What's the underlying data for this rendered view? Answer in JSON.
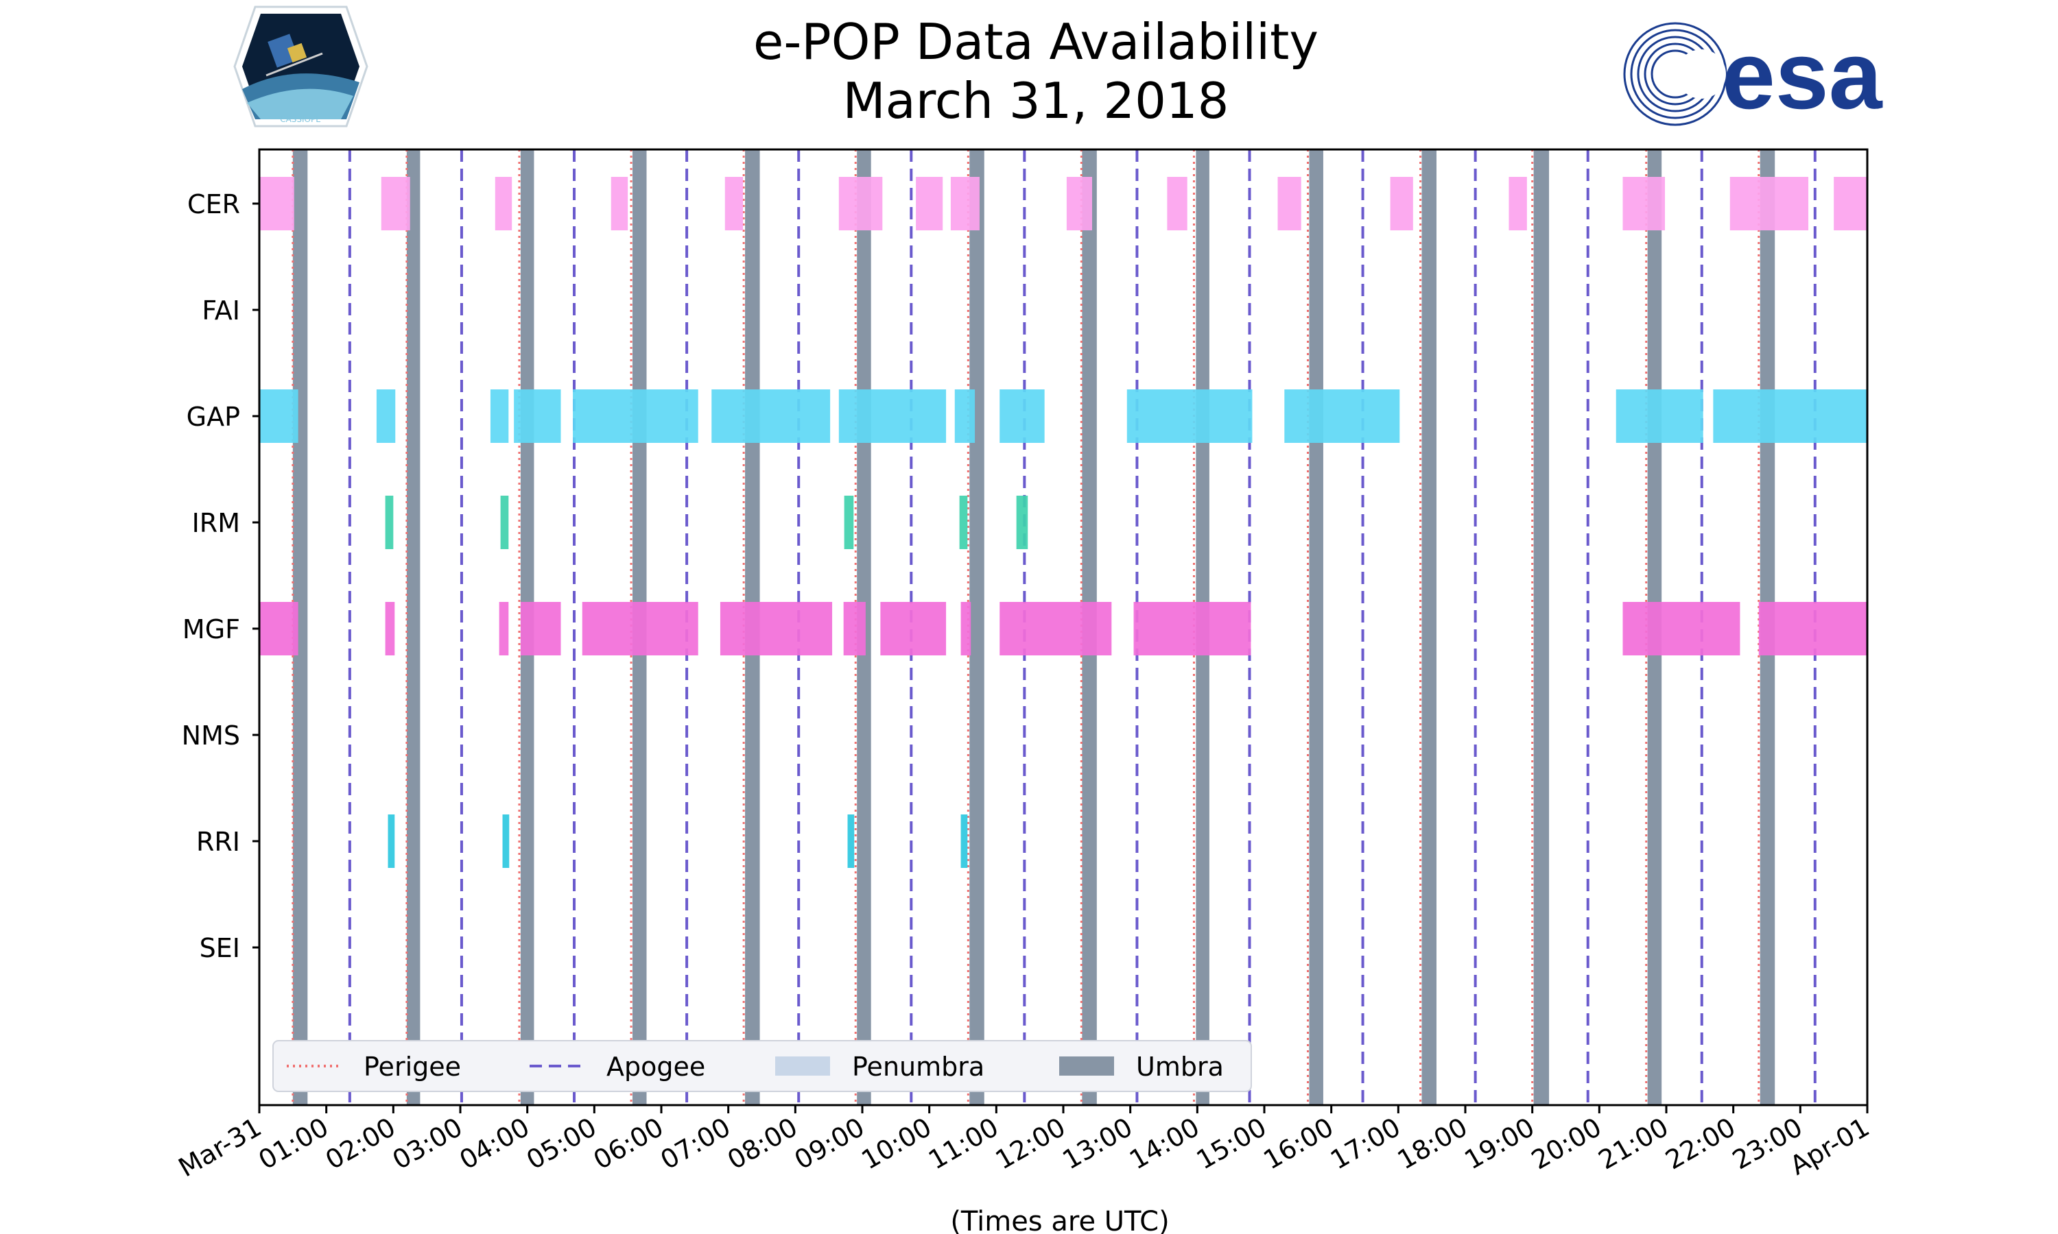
{
  "chart_data": {
    "type": "timeline",
    "title": "e-POP Data Availability",
    "subtitle": "March 31, 2018",
    "xlabel": "(Times are UTC)",
    "xlim_hours": [
      0,
      24
    ],
    "x_tick_labels": [
      "Mar-31",
      "01:00",
      "02:00",
      "03:00",
      "04:00",
      "05:00",
      "06:00",
      "07:00",
      "08:00",
      "09:00",
      "10:00",
      "11:00",
      "12:00",
      "13:00",
      "14:00",
      "15:00",
      "16:00",
      "17:00",
      "18:00",
      "19:00",
      "20:00",
      "21:00",
      "22:00",
      "23:00",
      "Apr-01"
    ],
    "y_categories": [
      "CER",
      "FAI",
      "GAP",
      "IRM",
      "MGF",
      "NMS",
      "RRI",
      "SEI"
    ],
    "legend": {
      "location": "lower-left",
      "entries": [
        {
          "label": "Perigee",
          "style": "dotted",
          "color": "#f07070"
        },
        {
          "label": "Apogee",
          "style": "dashed",
          "color": "#6a5acd"
        },
        {
          "label": "Penumbra",
          "style": "patch",
          "color": "#c8d6e8"
        },
        {
          "label": "Umbra",
          "style": "patch",
          "color": "#8795a5"
        }
      ]
    },
    "umbra": [
      [
        0.5,
        0.72
      ],
      [
        2.2,
        2.4
      ],
      [
        3.9,
        4.1
      ],
      [
        5.57,
        5.78
      ],
      [
        7.25,
        7.47
      ],
      [
        8.92,
        9.13
      ],
      [
        10.6,
        10.82
      ],
      [
        12.28,
        12.5
      ],
      [
        13.98,
        14.18
      ],
      [
        15.67,
        15.88
      ],
      [
        17.35,
        17.57
      ],
      [
        19.02,
        19.25
      ],
      [
        20.72,
        20.93
      ],
      [
        22.4,
        22.62
      ]
    ],
    "perigee": [
      0.5,
      2.2,
      3.88,
      5.55,
      7.23,
      8.9,
      10.58,
      12.27,
      13.95,
      15.65,
      17.33,
      19.0,
      20.7,
      22.38
    ],
    "apogee": [
      1.35,
      3.02,
      4.7,
      6.38,
      8.05,
      9.73,
      11.42,
      13.1,
      14.78,
      16.47,
      18.15,
      19.83,
      21.53,
      23.22
    ],
    "series": [
      {
        "name": "CER",
        "color": "#fca3ee",
        "intervals": [
          [
            0,
            0.52
          ],
          [
            1.82,
            2.25
          ],
          [
            3.52,
            3.77
          ],
          [
            5.25,
            5.5
          ],
          [
            6.95,
            7.22
          ],
          [
            8.65,
            9.3
          ],
          [
            9.8,
            10.2
          ],
          [
            10.32,
            10.75
          ],
          [
            12.05,
            12.43
          ],
          [
            13.55,
            13.85
          ],
          [
            15.2,
            15.55
          ],
          [
            16.88,
            17.22
          ],
          [
            18.65,
            18.92
          ],
          [
            20.35,
            20.98
          ],
          [
            21.95,
            23.12
          ],
          [
            23.5,
            24
          ]
        ]
      },
      {
        "name": "FAI",
        "color": "#f0a0e8",
        "intervals": []
      },
      {
        "name": "GAP",
        "color": "#5ed8f5",
        "intervals": [
          [
            0,
            0.58
          ],
          [
            1.75,
            2.03
          ],
          [
            3.45,
            3.72
          ],
          [
            3.8,
            4.5
          ],
          [
            4.68,
            6.55
          ],
          [
            6.75,
            8.52
          ],
          [
            8.65,
            10.25
          ],
          [
            10.38,
            10.68
          ],
          [
            11.05,
            11.72
          ],
          [
            12.95,
            14.82
          ],
          [
            15.3,
            17.02
          ],
          [
            20.25,
            21.55
          ],
          [
            21.7,
            24
          ]
        ]
      },
      {
        "name": "IRM",
        "color": "#3fd1ac",
        "intervals": [
          [
            1.88,
            2.0
          ],
          [
            3.6,
            3.72
          ],
          [
            8.73,
            8.87
          ],
          [
            10.45,
            10.57
          ],
          [
            11.3,
            11.47
          ]
        ]
      },
      {
        "name": "MGF",
        "color": "#f26ed9",
        "intervals": [
          [
            0,
            0.58
          ],
          [
            1.88,
            2.02
          ],
          [
            3.58,
            3.72
          ],
          [
            3.9,
            4.5
          ],
          [
            4.82,
            6.55
          ],
          [
            6.88,
            8.55
          ],
          [
            8.72,
            9.05
          ],
          [
            9.27,
            10.25
          ],
          [
            10.47,
            10.62
          ],
          [
            11.05,
            12.72
          ],
          [
            13.05,
            14.8
          ],
          [
            20.35,
            22.1
          ],
          [
            22.38,
            24
          ]
        ]
      },
      {
        "name": "NMS",
        "color": "#f0a0e8",
        "intervals": []
      },
      {
        "name": "RRI",
        "color": "#2ec8e0",
        "intervals": [
          [
            1.92,
            2.02
          ],
          [
            3.63,
            3.73
          ],
          [
            8.78,
            8.88
          ],
          [
            10.47,
            10.57
          ]
        ]
      },
      {
        "name": "SEI",
        "color": "#f0a0e8",
        "intervals": []
      }
    ]
  },
  "logos": {
    "left": {
      "name": "cassiope-logo",
      "text": "CASSIOPE"
    },
    "right": {
      "name": "esa-logo",
      "text": "esa",
      "color": "#1a3c8f"
    }
  }
}
